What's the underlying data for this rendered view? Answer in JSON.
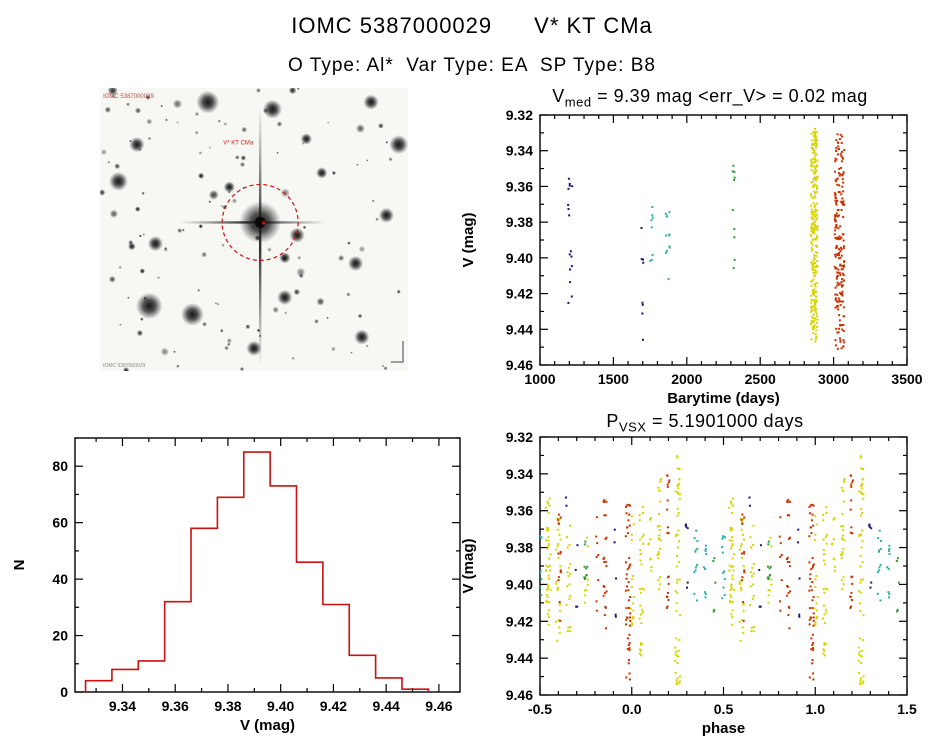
{
  "header": {
    "title_id": "IOMC 5387000029",
    "title_star": "V* KT CMa",
    "subtitle": "O Type: Al*  Var Type: EA  SP Type: B8"
  },
  "palette": {
    "navy": "#16167a",
    "teal": "#28b0a8",
    "green": "#2e9b2e",
    "yellow": "#d8d400",
    "red": "#c83200",
    "histogram": "#cc1111",
    "axis": "#000000"
  },
  "finding_chart": {
    "background": "#f7f7f4",
    "seed": 11,
    "n_faint_stars": 120,
    "target": {
      "fx": 0.52,
      "fy": 0.475
    },
    "circle_color": "#cc1111",
    "bright_stars": [
      {
        "fx": 0.35,
        "fy": 0.05,
        "r": 6
      },
      {
        "fx": 0.56,
        "fy": 0.075,
        "r": 5
      },
      {
        "fx": 0.12,
        "fy": 0.2,
        "r": 4
      },
      {
        "fx": 0.06,
        "fy": 0.33,
        "r": 5
      },
      {
        "fx": 0.97,
        "fy": 0.2,
        "r": 5
      },
      {
        "fx": 0.18,
        "fy": 0.55,
        "r": 4
      },
      {
        "fx": 0.16,
        "fy": 0.77,
        "r": 7
      },
      {
        "fx": 0.3,
        "fy": 0.8,
        "r": 6
      },
      {
        "fx": 0.6,
        "fy": 0.74,
        "r": 4
      },
      {
        "fx": 0.83,
        "fy": 0.62,
        "r": 4
      },
      {
        "fx": 0.85,
        "fy": 0.88,
        "r": 4
      },
      {
        "fx": 0.5,
        "fy": 0.92,
        "r": 4
      },
      {
        "fx": 0.93,
        "fy": 0.45,
        "r": 4
      },
      {
        "fx": 0.72,
        "fy": 0.3,
        "r": 3
      },
      {
        "fx": 0.67,
        "fy": 0.18,
        "r": 3
      },
      {
        "fx": 0.64,
        "fy": 0.52,
        "r": 4
      },
      {
        "fx": 0.6,
        "fy": 0.6,
        "r": 3
      },
      {
        "fx": 0.88,
        "fy": 0.05,
        "r": 4
      },
      {
        "fx": 0.42,
        "fy": 0.35,
        "r": 3
      }
    ],
    "labels": [
      {
        "text": "IOMC 5387000029",
        "fx": 0.01,
        "fy": 0.035,
        "color": "#b05050",
        "size": 6
      },
      {
        "text": "V* KT CMa",
        "fx": 0.4,
        "fy": 0.2,
        "color": "#cc2222",
        "size": 6
      },
      {
        "text": "IOMC 5387000029",
        "fx": 0.01,
        "fy": 0.985,
        "color": "#888888",
        "size": 5
      }
    ]
  },
  "chart_data": [
    {
      "id": "timeseries",
      "type": "scatter",
      "title": {
        "main": "V",
        "sub": "med",
        "rest": " = 9.39 mag <err_V> = 0.02 mag"
      },
      "xlabel": "Barytime (days)",
      "ylabel": "V (mag)",
      "xlim": [
        1000,
        3500
      ],
      "ylim": [
        9.32,
        9.46
      ],
      "y_inverted": true,
      "xticks": [
        1000,
        1500,
        2000,
        2500,
        3000,
        3500
      ],
      "yticks": [
        9.32,
        9.34,
        9.36,
        9.38,
        9.4,
        9.42,
        9.44,
        9.46
      ],
      "clusters": [
        {
          "x": 1205,
          "xspread": 30,
          "n": 16,
          "color": "navy",
          "ymin": 9.355,
          "ymax": 9.44
        },
        {
          "x": 1700,
          "xspread": 18,
          "n": 8,
          "color": "navy",
          "ymin": 9.378,
          "ymax": 9.447
        },
        {
          "x": 1760,
          "xspread": 18,
          "n": 8,
          "color": "teal",
          "ymin": 9.368,
          "ymax": 9.408
        },
        {
          "x": 1868,
          "xspread": 35,
          "n": 12,
          "color": "teal",
          "ymin": 9.372,
          "ymax": 9.412
        },
        {
          "x": 2320,
          "xspread": 14,
          "n": 10,
          "color": "green",
          "ymin": 9.348,
          "ymax": 9.408
        },
        {
          "x": 2868,
          "xspread": 45,
          "n": 260,
          "color": "yellow",
          "ymin": 9.327,
          "ymax": 9.447
        },
        {
          "x": 3040,
          "xspread": 65,
          "n": 200,
          "color": "red",
          "ymin": 9.33,
          "ymax": 9.452
        }
      ]
    },
    {
      "id": "histogram",
      "type": "histogram",
      "xlabel": "V (mag)",
      "ylabel": "N",
      "xlim": [
        9.322,
        9.468
      ],
      "ylim": [
        0,
        90
      ],
      "xticks": [
        9.34,
        9.36,
        9.38,
        9.4,
        9.42,
        9.44,
        9.46
      ],
      "yticks": [
        0,
        20,
        40,
        60,
        80
      ],
      "bin_start": 9.326,
      "bin_width": 0.01,
      "counts": [
        4,
        8,
        11,
        32,
        58,
        69,
        85,
        73,
        46,
        31,
        13,
        5,
        1
      ]
    },
    {
      "id": "phase",
      "type": "scatter",
      "title": {
        "main": "P",
        "sub": "VSX",
        "rest": " = 5.1901000 days"
      },
      "xlabel": "phase",
      "ylabel": "V (mag)",
      "xlim": [
        -0.5,
        1.5
      ],
      "ylim": [
        9.32,
        9.46
      ],
      "y_inverted": true,
      "duplicate_offset": 1.0,
      "xticks": [
        -0.5,
        0.0,
        0.5,
        1.0,
        1.5
      ],
      "yticks": [
        9.32,
        9.34,
        9.36,
        9.38,
        9.4,
        9.42,
        9.44,
        9.46
      ],
      "clusters": [
        {
          "x": -0.5,
          "xspread": 0.018,
          "n": 12,
          "color": "teal",
          "ymin": 9.372,
          "ymax": 9.415
        },
        {
          "x": -0.455,
          "xspread": 0.028,
          "n": 42,
          "color": "yellow",
          "ymin": 9.353,
          "ymax": 9.423
        },
        {
          "x": -0.4,
          "xspread": 0.025,
          "n": 26,
          "color": "yellow",
          "ymin": 9.358,
          "ymax": 9.432
        },
        {
          "x": -0.395,
          "xspread": 0.02,
          "n": 14,
          "color": "red",
          "ymin": 9.36,
          "ymax": 9.42
        },
        {
          "x": -0.36,
          "xspread": 0.01,
          "n": 2,
          "color": "navy",
          "ymin": 9.352,
          "ymax": 9.358
        },
        {
          "x": -0.345,
          "xspread": 0.022,
          "n": 18,
          "color": "yellow",
          "ymin": 9.363,
          "ymax": 9.43
        },
        {
          "x": -0.3,
          "xspread": 0.015,
          "n": 4,
          "color": "navy",
          "ymin": 9.378,
          "ymax": 9.422
        },
        {
          "x": -0.25,
          "xspread": 0.02,
          "n": 10,
          "color": "green",
          "ymin": 9.368,
          "ymax": 9.406
        },
        {
          "x": -0.245,
          "xspread": 0.02,
          "n": 8,
          "color": "yellow",
          "ymin": 9.372,
          "ymax": 9.41
        },
        {
          "x": -0.19,
          "xspread": 0.015,
          "n": 8,
          "color": "red",
          "ymin": 9.358,
          "ymax": 9.42
        },
        {
          "x": -0.145,
          "xspread": 0.02,
          "n": 22,
          "color": "red",
          "ymin": 9.35,
          "ymax": 9.432
        },
        {
          "x": -0.09,
          "xspread": 0.015,
          "n": 5,
          "color": "navy",
          "ymin": 9.368,
          "ymax": 9.42
        },
        {
          "x": -0.02,
          "xspread": 0.025,
          "n": 48,
          "color": "red",
          "ymin": 9.356,
          "ymax": 9.452
        },
        {
          "x": 0.005,
          "xspread": 0.02,
          "n": 16,
          "color": "yellow",
          "ymin": 9.36,
          "ymax": 9.43
        },
        {
          "x": 0.055,
          "xspread": 0.025,
          "n": 30,
          "color": "yellow",
          "ymin": 9.358,
          "ymax": 9.44
        },
        {
          "x": 0.1,
          "xspread": 0.018,
          "n": 9,
          "color": "yellow",
          "ymin": 9.36,
          "ymax": 9.402
        },
        {
          "x": 0.15,
          "xspread": 0.02,
          "n": 26,
          "color": "yellow",
          "ymin": 9.336,
          "ymax": 9.41
        },
        {
          "x": 0.2,
          "xspread": 0.018,
          "n": 20,
          "color": "red",
          "ymin": 9.34,
          "ymax": 9.414
        },
        {
          "x": 0.25,
          "xspread": 0.028,
          "n": 55,
          "color": "yellow",
          "ymin": 9.33,
          "ymax": 9.455
        },
        {
          "x": 0.3,
          "xspread": 0.015,
          "n": 6,
          "color": "navy",
          "ymin": 9.36,
          "ymax": 9.43
        },
        {
          "x": 0.35,
          "xspread": 0.018,
          "n": 12,
          "color": "teal",
          "ymin": 9.36,
          "ymax": 9.41
        },
        {
          "x": 0.4,
          "xspread": 0.015,
          "n": 9,
          "color": "teal",
          "ymin": 9.378,
          "ymax": 9.412
        },
        {
          "x": 0.45,
          "xspread": 0.012,
          "n": 5,
          "color": "green",
          "ymin": 9.38,
          "ymax": 9.42
        }
      ]
    }
  ]
}
